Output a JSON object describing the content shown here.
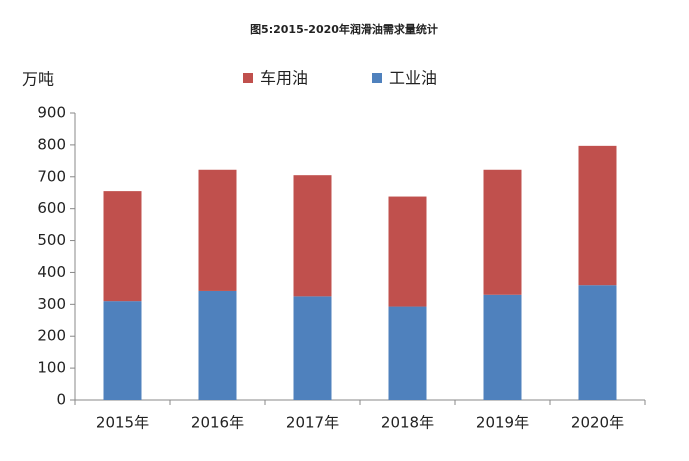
{
  "chart_data": {
    "type": "bar",
    "stacked": true,
    "title": "图5:2015-2020年润滑油需求量统计",
    "y_label": "万吨",
    "categories": [
      "2015年",
      "2016年",
      "2017年",
      "2018年",
      "2019年",
      "2020年"
    ],
    "series": [
      {
        "name": "车用油",
        "color": "#c0504d",
        "values": [
          345,
          380,
          380,
          345,
          392,
          437
        ]
      },
      {
        "name": "工业油",
        "color": "#4f81bd",
        "values": [
          310,
          342,
          325,
          293,
          330,
          360
        ]
      }
    ],
    "ylim": [
      0,
      900
    ],
    "yticks": [
      0,
      100,
      200,
      300,
      400,
      500,
      600,
      700,
      800,
      900
    ],
    "grid": false,
    "legend": "top"
  }
}
